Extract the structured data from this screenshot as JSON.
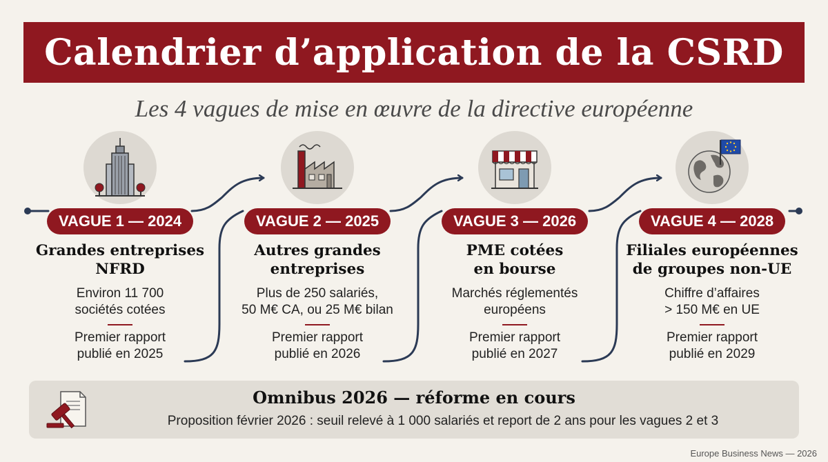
{
  "header": {
    "title": "Calendrier d’application de la CSRD",
    "subtitle": "Les 4 vagues de mise en œuvre de la directive européenne"
  },
  "waves": [
    {
      "badge": "VAGUE 1 — 2024",
      "title": "Grandes entreprises\nNFRD",
      "description": "Environ 11 700\nsociétés cotées",
      "first_report": "Premier rapport\npublié en 2025",
      "icon": "skyscraper-icon"
    },
    {
      "badge": "VAGUE 2 — 2025",
      "title": "Autres grandes\nentreprises",
      "description": "Plus de 250 salariés,\n50 M€ CA, ou 25 M€ bilan",
      "first_report": "Premier rapport\npublié en 2026",
      "icon": "factory-icon"
    },
    {
      "badge": "VAGUE 3 — 2026",
      "title": "PME cotées\nen bourse",
      "description": "Marchés réglementés\neuropéens",
      "first_report": "Premier rapport\npublié en 2027",
      "icon": "shop-icon"
    },
    {
      "badge": "VAGUE 4 — 2028",
      "title": "Filiales européennes\nde groupes non-UE",
      "description": "Chiffre d’affaires\n> 150 M€ en UE",
      "first_report": "Premier rapport\npublié en 2029",
      "icon": "globe-eu-flag-icon"
    }
  ],
  "omnibus": {
    "title": "Omnibus 2026 — réforme en cours",
    "text": "Proposition février 2026 : seuil relevé à 1 000 salariés et report de 2 ans pour les vagues 2 et 3",
    "icon": "gavel-document-icon"
  },
  "footer": {
    "source": "Europe Business News — 2026"
  },
  "colors": {
    "accent": "#8f1820",
    "navy": "#2b3a55",
    "background": "#f5f2ec",
    "panel": "#e1ddd6"
  }
}
